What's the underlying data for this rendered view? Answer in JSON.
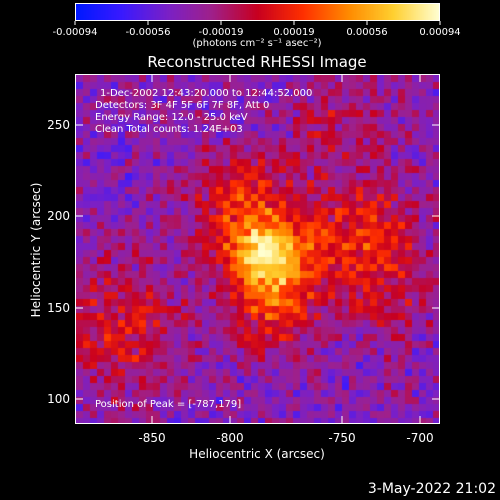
{
  "colorbar": {
    "tick_labels": [
      "-0.00094",
      "-0.00056",
      "-0.00019",
      "0.00019",
      "0.00056",
      "0.00094"
    ],
    "units": "(photons cm⁻² s⁻¹ asec⁻²)",
    "colors": [
      "#0018ff",
      "#3a1aff",
      "#7a20c8",
      "#a0208a",
      "#c80020",
      "#ff3000",
      "#ff8a00",
      "#ffd030",
      "#ffffd0"
    ]
  },
  "title": "Reconstructed RHESSI Image",
  "info": {
    "line1": "1-Dec-2002 12:43:20.000 to 12:44:52.000",
    "line2": "Detectors: 3F 4F 5F 6F 7F 8F, Att 0",
    "line3": "Energy Range: 12.0 - 25.0 keV",
    "line4": "Clean     Total counts: 1.24E+03"
  },
  "peak_text": "Position of Peak = [-787,179]",
  "axes": {
    "xlabel": "Heliocentric X (arcsec)",
    "ylabel": "Heliocentric Y (arcsec)",
    "xticks": [
      "-850",
      "-800",
      "-750",
      "-700"
    ],
    "yticks": [
      "250",
      "200",
      "150",
      "100"
    ],
    "xlim": [
      -888,
      -692
    ],
    "ylim": [
      88,
      278
    ]
  },
  "peak": {
    "x": -787,
    "y": 179
  },
  "timestamp": "3-May-2022 21:02"
}
